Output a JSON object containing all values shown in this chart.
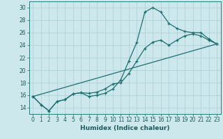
{
  "xlabel": "Humidex (Indice chaleur)",
  "bg_color": "#cce8ec",
  "grid_color": "#aacdd4",
  "line_color": "#1e6e6e",
  "xlim": [
    -0.5,
    23.5
  ],
  "ylim": [
    13.0,
    31.0
  ],
  "xticks": [
    0,
    1,
    2,
    3,
    4,
    5,
    6,
    7,
    8,
    9,
    10,
    11,
    12,
    13,
    14,
    15,
    16,
    17,
    18,
    19,
    20,
    21,
    22,
    23
  ],
  "yticks": [
    14,
    16,
    18,
    20,
    22,
    24,
    26,
    28,
    30
  ],
  "line1_x": [
    0,
    1,
    2,
    3,
    4,
    5,
    6,
    7,
    8,
    9,
    10,
    11,
    12,
    13,
    14,
    15,
    16,
    17,
    18,
    19,
    20,
    21,
    22,
    23
  ],
  "line1_y": [
    15.8,
    14.5,
    13.5,
    15.0,
    15.3,
    16.2,
    16.4,
    15.8,
    16.0,
    16.3,
    17.0,
    18.5,
    21.5,
    24.5,
    29.3,
    30.0,
    29.3,
    27.5,
    26.7,
    26.2,
    26.0,
    26.0,
    25.0,
    24.2
  ],
  "line2_x": [
    0,
    1,
    2,
    3,
    4,
    5,
    6,
    7,
    8,
    9,
    10,
    11,
    12,
    13,
    14,
    15,
    16,
    17,
    18,
    19,
    20,
    21,
    22,
    23
  ],
  "line2_y": [
    15.8,
    14.5,
    13.5,
    15.0,
    15.3,
    16.2,
    16.4,
    16.3,
    16.5,
    17.0,
    17.8,
    18.0,
    19.5,
    21.5,
    23.5,
    24.5,
    24.8,
    24.0,
    24.8,
    25.5,
    25.8,
    25.5,
    24.8,
    24.2
  ],
  "line3_x": [
    0,
    23
  ],
  "line3_y": [
    15.8,
    24.2
  ]
}
